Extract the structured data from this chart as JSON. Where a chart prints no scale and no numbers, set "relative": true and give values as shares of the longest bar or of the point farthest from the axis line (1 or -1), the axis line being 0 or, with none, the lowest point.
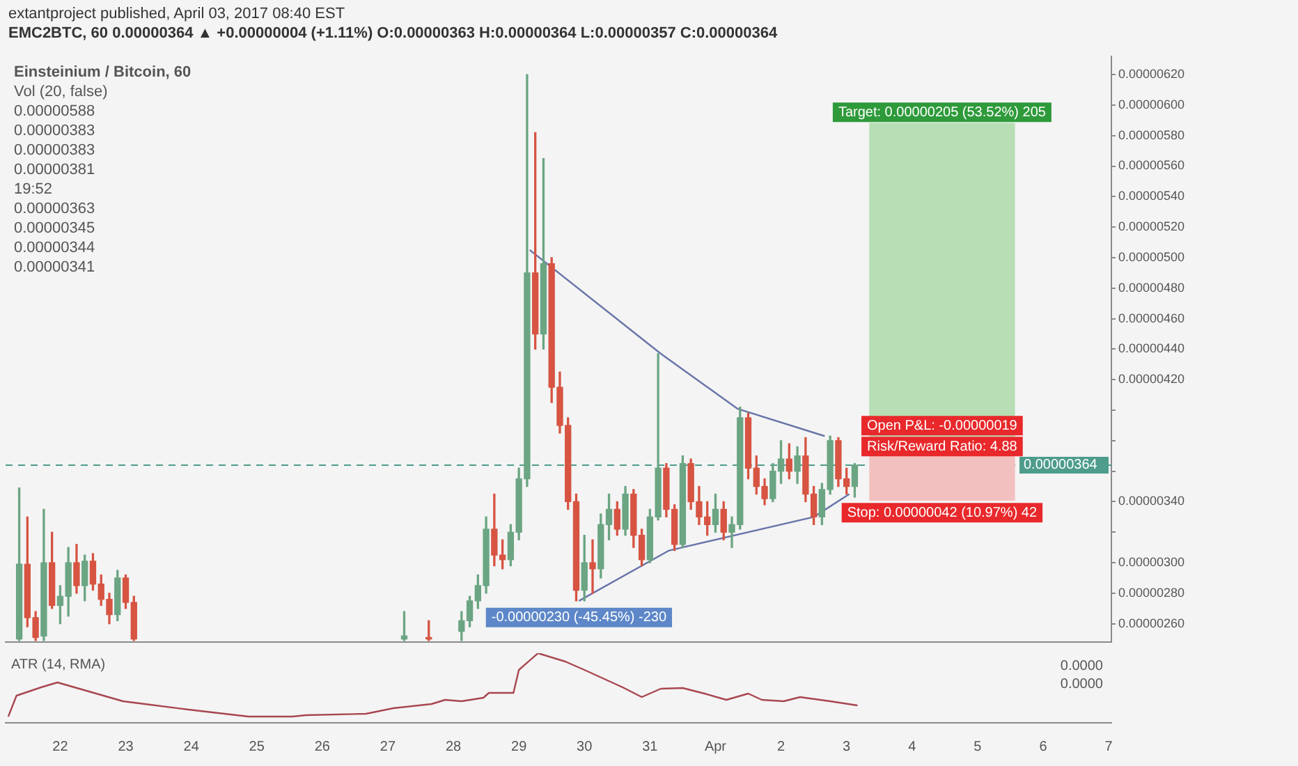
{
  "chart_data": [
    {
      "type": "candlestick",
      "title": "extantproject published, April 03, 2017 08:40 EST",
      "subtitle": "EMC2BTC, 60  0.00000364 ▲ +0.00000004 (+1.11%) O:0.00000363 H:0.00000364 L:0.00000357 C:0.00000364",
      "annotations": [
        "Einsteinium / Bitcoin, 60",
        "Vol (20, false)",
        "0.00000588",
        "0.00000383",
        "0.00000383",
        "0.00000381",
        "19:52",
        "0.00000363",
        "0.00000345",
        "0.00000344",
        "0.00000341",
        {
          "text": "-0.00000230 (-45.45%) -230",
          "x": "2017-03-29T22:00",
          "y": 2.75e-06
        },
        {
          "text": "Open P&L: -0.00000019",
          "x": "2017-04-04T11:00",
          "y": 3.83e-06
        },
        {
          "text": "Risk/Reward Ratio: 4.88",
          "x": "2017-04-04T11:00",
          "y": 3.83e-06
        }
      ],
      "xlim": [
        "2017-03-21T04:00",
        "2017-04-07T01:00"
      ],
      "ylim": [
        2.48e-06,
        6.32e-06
      ],
      "yticks": [
        {
          "value": 2.6e-06,
          "label": "0.00000260"
        },
        {
          "value": 2.8e-06,
          "label": "0.00000280"
        },
        {
          "value": 3e-06,
          "label": "0.00000300"
        },
        {
          "value": 3.2e-06,
          "label": null
        },
        {
          "value": 3.4e-06,
          "label": "0.00000340"
        },
        {
          "value": 3.6e-06,
          "label": null
        },
        {
          "value": 3.8e-06,
          "label": null
        },
        {
          "value": 4e-06,
          "label": null
        },
        {
          "value": 4.2e-06,
          "label": "0.00000420"
        },
        {
          "value": 4.4e-06,
          "label": "0.00000440"
        },
        {
          "value": 4.6e-06,
          "label": "0.00000460"
        },
        {
          "value": 4.8e-06,
          "label": "0.00000480"
        },
        {
          "value": 5e-06,
          "label": "0.00000500"
        },
        {
          "value": 5.2e-06,
          "label": "0.00000520"
        },
        {
          "value": 5.4e-06,
          "label": "0.00000540"
        },
        {
          "value": 5.6e-06,
          "label": "0.00000560"
        },
        {
          "value": 5.8e-06,
          "label": "0.00000580"
        },
        {
          "value": 6e-06,
          "label": "0.00000600"
        },
        {
          "value": 6.2e-06,
          "label": "0.00000620"
        }
      ],
      "tick_labels": "y",
      "ref_lines": [
        {
          "axis": "y",
          "value": 3.64e-06,
          "label": "0.00000364",
          "color": "#4d9c8c",
          "line_style": "dashed"
        }
      ],
      "series": [
        {
          "type": "bar",
          "x": [
            "2017-04-04T11:00"
          ],
          "base": [
            3.83e-06
          ],
          "values": [
            2.05e-06
          ],
          "color": "#b7deb4",
          "value_labels": [
            "Target: 0.00000205 (53.52%) 205"
          ]
        },
        {
          "type": "bar",
          "x": [
            "2017-04-04T11:00"
          ],
          "base": [
            3.41e-06
          ],
          "values": [
            4.2e-07
          ],
          "color": "#f3c0c0",
          "value_labels": [
            "Stop: 0.00000042 (10.97%) 42"
          ]
        },
        {
          "type": "line",
          "x": [
            "2017-03-29T04:00",
            "2017-03-31T04:00",
            "2017-04-01T08:00",
            "2017-04-02T16:00"
          ],
          "values": [
            5.05e-06,
            4.37e-06,
            4.01e-06,
            3.83e-06
          ],
          "color": "#6874a8"
        },
        {
          "type": "line",
          "x": [
            "2017-03-29T22:00",
            "2017-03-31T07:00",
            "2017-04-02T12:00",
            "2017-04-03T01:00"
          ],
          "values": [
            2.75e-06,
            3.08e-06,
            3.3e-06,
            3.45e-06
          ],
          "color": "#6874a8"
        },
        {
          "x": [
            "2017-03-21T09:00",
            "2017-03-21T12:00",
            "2017-03-21T15:00",
            "2017-03-21T18:00",
            "2017-03-21T21:00",
            "2017-03-22T00:00",
            "2017-03-22T03:00",
            "2017-03-22T06:00",
            "2017-03-22T09:00",
            "2017-03-22T12:00",
            "2017-03-22T15:00",
            "2017-03-22T18:00",
            "2017-03-22T21:00",
            "2017-03-23T00:00",
            "2017-03-23T03:00",
            "2017-03-27T06:00",
            "2017-03-27T15:00",
            "2017-03-28T03:00",
            "2017-03-28T06:00",
            "2017-03-28T09:00",
            "2017-03-28T12:00",
            "2017-03-28T15:00",
            "2017-03-28T18:00",
            "2017-03-28T21:00",
            "2017-03-29T00:00",
            "2017-03-29T03:00",
            "2017-03-29T06:00",
            "2017-03-29T09:00",
            "2017-03-29T12:00",
            "2017-03-29T15:00",
            "2017-03-29T18:00",
            "2017-03-29T21:00",
            "2017-03-30T00:00",
            "2017-03-30T03:00",
            "2017-03-30T06:00",
            "2017-03-30T09:00",
            "2017-03-30T12:00",
            "2017-03-30T15:00",
            "2017-03-30T18:00",
            "2017-03-30T21:00",
            "2017-03-31T00:00",
            "2017-03-31T03:00",
            "2017-03-31T06:00",
            "2017-03-31T09:00",
            "2017-03-31T12:00",
            "2017-03-31T15:00",
            "2017-03-31T18:00",
            "2017-03-31T21:00",
            "2017-04-01T00:00",
            "2017-04-01T03:00",
            "2017-04-01T06:00",
            "2017-04-01T09:00",
            "2017-04-01T12:00",
            "2017-04-01T15:00",
            "2017-04-01T18:00",
            "2017-04-01T21:00",
            "2017-04-02T00:00",
            "2017-04-02T03:00",
            "2017-04-02T06:00",
            "2017-04-02T09:00",
            "2017-04-02T12:00",
            "2017-04-02T15:00",
            "2017-04-02T18:00",
            "2017-04-02T21:00",
            "2017-04-03T00:00",
            "2017-04-03T03:00"
          ],
          "ohlc": [
            [
              2.5e-06,
              3.49e-06,
              2.49e-06,
              2.99e-06
            ],
            [
              2.99e-06,
              3.3e-06,
              2.58e-06,
              2.64e-06
            ],
            [
              2.64e-06,
              2.68e-06,
              2.49e-06,
              2.51e-06
            ],
            [
              2.52e-06,
              3.35e-06,
              2.49e-06,
              3e-06
            ],
            [
              3e-06,
              3.2e-06,
              2.7e-06,
              2.72e-06
            ],
            [
              2.72e-06,
              2.85e-06,
              2.6e-06,
              2.78e-06
            ],
            [
              2.78e-06,
              3.1e-06,
              2.65e-06,
              3e-06
            ],
            [
              3e-06,
              3.12e-06,
              2.8e-06,
              2.85e-06
            ],
            [
              2.85e-06,
              3.05e-06,
              2.75e-06,
              3.01e-06
            ],
            [
              3.01e-06,
              3.06e-06,
              2.82e-06,
              2.86e-06
            ],
            [
              2.86e-06,
              2.92e-06,
              2.72e-06,
              2.76e-06
            ],
            [
              2.76e-06,
              2.8e-06,
              2.6e-06,
              2.66e-06
            ],
            [
              2.66e-06,
              2.95e-06,
              2.62e-06,
              2.9e-06
            ],
            [
              2.9e-06,
              2.92e-06,
              2.7e-06,
              2.74e-06
            ],
            [
              2.74e-06,
              2.78e-06,
              2.49e-06,
              2.5e-06
            ],
            [
              2.5e-06,
              2.68e-06,
              2.49e-06,
              2.52e-06
            ],
            [
              2.51e-06,
              2.62e-06,
              2.49e-06,
              2.5e-06
            ],
            [
              2.55e-06,
              2.68e-06,
              2.49e-06,
              2.62e-06
            ],
            [
              2.62e-06,
              2.78e-06,
              2.58e-06,
              2.75e-06
            ],
            [
              2.75e-06,
              2.92e-06,
              2.7e-06,
              2.85e-06
            ],
            [
              2.85e-06,
              3.3e-06,
              2.8e-06,
              3.22e-06
            ],
            [
              3.22e-06,
              3.45e-06,
              2.98e-06,
              3.05e-06
            ],
            [
              3.05e-06,
              3.15e-06,
              2.96e-06,
              3.02e-06
            ],
            [
              3.02e-06,
              3.25e-06,
              2.98e-06,
              3.2e-06
            ],
            [
              3.2e-06,
              3.62e-06,
              3.15e-06,
              3.55e-06
            ],
            [
              3.55e-06,
              6.2e-06,
              3.5e-06,
              4.9e-06
            ],
            [
              4.9e-06,
              5.82e-06,
              4.4e-06,
              4.5e-06
            ],
            [
              4.5e-06,
              5.65e-06,
              4.4e-06,
              4.96e-06
            ],
            [
              4.96e-06,
              5e-06,
              4.05e-06,
              4.15e-06
            ],
            [
              4.15e-06,
              4.25e-06,
              3.85e-06,
              3.9e-06
            ],
            [
              3.9e-06,
              3.95e-06,
              3.35e-06,
              3.4e-06
            ],
            [
              3.4e-06,
              3.45e-06,
              2.75e-06,
              2.82e-06
            ],
            [
              2.82e-06,
              3.18e-06,
              2.75e-06,
              3e-06
            ],
            [
              3e-06,
              3.15e-06,
              2.8e-06,
              2.96e-06
            ],
            [
              2.96e-06,
              3.32e-06,
              2.9e-06,
              3.25e-06
            ],
            [
              3.25e-06,
              3.45e-06,
              3.15e-06,
              3.35e-06
            ],
            [
              3.35e-06,
              3.4e-06,
              3.18e-06,
              3.22e-06
            ],
            [
              3.22e-06,
              3.5e-06,
              3.18e-06,
              3.45e-06
            ],
            [
              3.45e-06,
              3.48e-06,
              3.1e-06,
              3.18e-06
            ],
            [
              3.18e-06,
              3.22e-06,
              2.98e-06,
              3.02e-06
            ],
            [
              3.02e-06,
              3.35e-06,
              3e-06,
              3.3e-06
            ],
            [
              3.3e-06,
              4.37e-06,
              3.28e-06,
              3.62e-06
            ],
            [
              3.62e-06,
              3.65e-06,
              3.3e-06,
              3.35e-06
            ],
            [
              3.35e-06,
              3.38e-06,
              3.08e-06,
              3.12e-06
            ],
            [
              3.12e-06,
              3.7e-06,
              3.1e-06,
              3.65e-06
            ],
            [
              3.65e-06,
              3.68e-06,
              3.35e-06,
              3.4e-06
            ],
            [
              3.4e-06,
              3.5e-06,
              3.25e-06,
              3.3e-06
            ],
            [
              3.3e-06,
              3.4e-06,
              3.18e-06,
              3.25e-06
            ],
            [
              3.25e-06,
              3.45e-06,
              3.2e-06,
              3.35e-06
            ],
            [
              3.35e-06,
              3.4e-06,
              3.15e-06,
              3.2e-06
            ],
            [
              3.2e-06,
              3.3e-06,
              3.1e-06,
              3.25e-06
            ],
            [
              3.25e-06,
              4.02e-06,
              3.22e-06,
              3.95e-06
            ],
            [
              3.95e-06,
              3.98e-06,
              3.55e-06,
              3.62e-06
            ],
            [
              3.62e-06,
              3.7e-06,
              3.45e-06,
              3.5e-06
            ],
            [
              3.5e-06,
              3.55e-06,
              3.38e-06,
              3.42e-06
            ],
            [
              3.42e-06,
              3.65e-06,
              3.4e-06,
              3.6e-06
            ],
            [
              3.6e-06,
              3.8e-06,
              3.52e-06,
              3.68e-06
            ],
            [
              3.68e-06,
              3.78e-06,
              3.55e-06,
              3.6e-06
            ],
            [
              3.6e-06,
              3.76e-06,
              3.52e-06,
              3.7e-06
            ],
            [
              3.7e-06,
              3.82e-06,
              3.4e-06,
              3.45e-06
            ],
            [
              3.45e-06,
              3.5e-06,
              3.25e-06,
              3.3e-06
            ],
            [
              3.3e-06,
              3.52e-06,
              3.25e-06,
              3.48e-06
            ],
            [
              3.48e-06,
              3.83e-06,
              3.45e-06,
              3.8e-06
            ],
            [
              3.8e-06,
              3.82e-06,
              3.5e-06,
              3.55e-06
            ],
            [
              3.55e-06,
              3.62e-06,
              3.45e-06,
              3.5e-06
            ],
            [
              3.5e-06,
              3.65e-06,
              3.43e-06,
              3.64e-06
            ]
          ],
          "colors": [
            "#6ba583",
            "#d75442",
            "#d75442",
            "#6ba583",
            "#d75442",
            "#6ba583",
            "#6ba583",
            "#d75442",
            "#6ba583",
            "#d75442",
            "#d75442",
            "#d75442",
            "#6ba583",
            "#d75442",
            "#d75442",
            "#6ba583",
            "#d75442",
            "#6ba583",
            "#6ba583",
            "#6ba583",
            "#6ba583",
            "#d75442",
            "#d75442",
            "#6ba583",
            "#6ba583",
            "#6ba583",
            "#d75442",
            "#6ba583",
            "#d75442",
            "#d75442",
            "#d75442",
            "#d75442",
            "#6ba583",
            "#d75442",
            "#6ba583",
            "#6ba583",
            "#d75442",
            "#6ba583",
            "#d75442",
            "#d75442",
            "#6ba583",
            "#6ba583",
            "#d75442",
            "#d75442",
            "#6ba583",
            "#d75442",
            "#d75442",
            "#d75442",
            "#6ba583",
            "#d75442",
            "#6ba583",
            "#6ba583",
            "#d75442",
            "#d75442",
            "#d75442",
            "#6ba583",
            "#6ba583",
            "#d75442",
            "#6ba583",
            "#d75442",
            "#d75442",
            "#6ba583",
            "#6ba583",
            "#d75442",
            "#d75442",
            "#6ba583"
          ]
        }
      ]
    },
    {
      "type": "line",
      "title": "ATR (14, RMA)",
      "relative": true,
      "annotations": [
        "0.0000",
        "0.0000"
      ],
      "xlim": [
        "2017-03-21T04:00",
        "2017-04-07T01:00"
      ],
      "xticks": [
        {
          "value": "2017-03-22",
          "label": "22"
        },
        {
          "value": "2017-03-23",
          "label": "23"
        },
        {
          "value": "2017-03-24",
          "label": "24"
        },
        {
          "value": "2017-03-25",
          "label": "25"
        },
        {
          "value": "2017-03-26",
          "label": "26"
        },
        {
          "value": "2017-03-27",
          "label": "27"
        },
        {
          "value": "2017-03-28",
          "label": "28"
        },
        {
          "value": "2017-03-29",
          "label": "29"
        },
        {
          "value": "2017-03-30",
          "label": "30"
        },
        {
          "value": "2017-03-31",
          "label": "31"
        },
        {
          "value": "2017-04-01",
          "label": "Apr"
        },
        {
          "value": "2017-04-02",
          "label": "2"
        },
        {
          "value": "2017-04-03",
          "label": "3"
        },
        {
          "value": "2017-04-04",
          "label": "4"
        },
        {
          "value": "2017-04-05",
          "label": "5"
        },
        {
          "value": "2017-04-06",
          "label": "6"
        },
        {
          "value": "2017-04-07",
          "label": "7"
        }
      ],
      "tick_labels": "x",
      "series": [
        {
          "color": "#a8464f",
          "x": [
            "2017-03-21T05:00",
            "2017-03-21T08:00",
            "2017-03-21T17:00",
            "2017-03-21T23:00",
            "2017-03-22T23:00",
            "2017-03-23T07:00",
            "2017-03-23T23:00",
            "2017-03-24T21:00",
            "2017-03-25T13:00",
            "2017-03-25T18:00",
            "2017-03-26T16:00",
            "2017-03-27T02:00",
            "2017-03-27T16:00",
            "2017-03-27T21:00",
            "2017-03-28T03:00",
            "2017-03-28T11:00",
            "2017-03-28T13:00",
            "2017-03-28T22:00",
            "2017-03-29T00:00",
            "2017-03-29T07:00",
            "2017-03-29T17:00",
            "2017-03-30T00:00",
            "2017-03-30T14:00",
            "2017-03-30T21:00",
            "2017-03-31T04:00",
            "2017-03-31T12:00",
            "2017-03-31T20:00",
            "2017-04-01T04:00",
            "2017-04-01T12:00",
            "2017-04-01T17:00",
            "2017-04-02T01:00",
            "2017-04-02T07:00",
            "2017-04-02T18:00",
            "2017-04-03T04:00"
          ],
          "values": [
            0.09,
            0.39,
            0.51,
            0.58,
            0.31,
            0.27,
            0.19,
            0.09,
            0.09,
            0.11,
            0.13,
            0.21,
            0.27,
            0.33,
            0.31,
            0.36,
            0.43,
            0.43,
            0.76,
            1,
            0.88,
            0.76,
            0.51,
            0.37,
            0.49,
            0.5,
            0.42,
            0.33,
            0.42,
            0.33,
            0.31,
            0.37,
            0.31,
            0.25
          ]
        }
      ]
    }
  ]
}
